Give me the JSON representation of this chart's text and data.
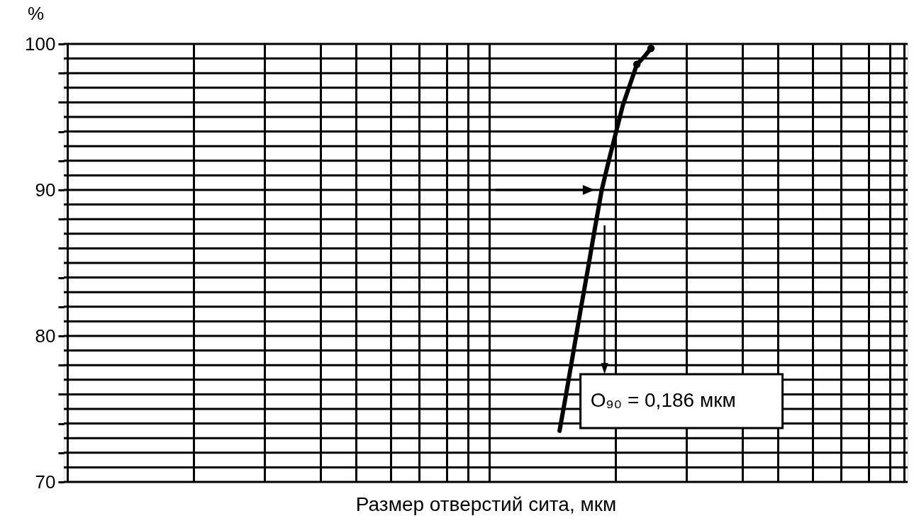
{
  "chart_data": {
    "type": "line",
    "xlabel": "Размер отверстий сита, мкм",
    "ylabel": "%",
    "grid": true,
    "tick_labels": "y",
    "line_style": "solid",
    "ylim": [
      70,
      100
    ],
    "categories": [
      null,
      null,
      null,
      null,
      null,
      null,
      null,
      null,
      null,
      null,
      null,
      null,
      null,
      null,
      null,
      null,
      null,
      null,
      null,
      null,
      null,
      null,
      null,
      null,
      null,
      null,
      null,
      null,
      null,
      null,
      null,
      null,
      null,
      null,
      null,
      null,
      null,
      null,
      null,
      null,
      null,
      null,
      null,
      null,
      null,
      null,
      null,
      null,
      null,
      null,
      null,
      null,
      null,
      null,
      null,
      null,
      null,
      null,
      null,
      null,
      null,
      null,
      null,
      null,
      null,
      null,
      null,
      null,
      null,
      null,
      null,
      null,
      null,
      null,
      null,
      null,
      null,
      null,
      null,
      null,
      null,
      null,
      null,
      null,
      null,
      null,
      null,
      null,
      null,
      null,
      null,
      null,
      null,
      null,
      null,
      null,
      null,
      null,
      null,
      null,
      null,
      null,
      null,
      null,
      null,
      null,
      null,
      null,
      null,
      null,
      null,
      null,
      null,
      null,
      null,
      null,
      null,
      null,
      null,
      null
    ],
    "yticks": [
      70,
      {
        "value": 71,
        "label": null
      },
      {
        "value": 72,
        "label": null
      },
      {
        "value": 73,
        "label": null
      },
      {
        "value": 74,
        "label": null
      },
      {
        "value": 75,
        "label": null
      },
      {
        "value": 76,
        "label": null
      },
      {
        "value": 77,
        "label": null
      },
      {
        "value": 78,
        "label": null
      },
      {
        "value": 79,
        "label": null
      },
      80,
      {
        "value": 81,
        "label": null
      },
      {
        "value": 82,
        "label": null
      },
      {
        "value": 83,
        "label": null
      },
      {
        "value": 84,
        "label": null
      },
      {
        "value": 85,
        "label": null
      },
      {
        "value": 86,
        "label": null
      },
      {
        "value": 87,
        "label": null
      },
      {
        "value": 88,
        "label": null
      },
      {
        "value": 89,
        "label": null
      },
      90,
      {
        "value": 91,
        "label": null
      },
      {
        "value": 92,
        "label": null
      },
      {
        "value": 93,
        "label": null
      },
      {
        "value": 94,
        "label": null
      },
      {
        "value": 95,
        "label": null
      },
      {
        "value": 96,
        "label": null
      },
      {
        "value": 97,
        "label": null
      },
      {
        "value": 98,
        "label": null
      },
      {
        "value": 99,
        "label": null
      },
      100
    ],
    "series": [
      {
        "color": "#000000",
        "marker": "none",
        "values": [
          null,
          null,
          null,
          null,
          null,
          null,
          null,
          null,
          null,
          null,
          null,
          null,
          null,
          null,
          null,
          null,
          null,
          null,
          null,
          null,
          null,
          null,
          null,
          null,
          null,
          null,
          null,
          null,
          null,
          null,
          null,
          null,
          null,
          null,
          null,
          null,
          null,
          null,
          null,
          null,
          null,
          null,
          null,
          null,
          null,
          null,
          null,
          null,
          null,
          null,
          null,
          null,
          null,
          null,
          null,
          null,
          null,
          null,
          null,
          null,
          null,
          null,
          null,
          null,
          null,
          null,
          null,
          null,
          null,
          null,
          73.5,
          76.2,
          79.0,
          81.8,
          84.5,
          87.3,
          90.0,
          92.0,
          93.9,
          95.8,
          97.2,
          98.6,
          99.1,
          99.7,
          null,
          null,
          null,
          null,
          null,
          null,
          null,
          null,
          null,
          null,
          null,
          null,
          null,
          null,
          null,
          null,
          null,
          null,
          null,
          null,
          null,
          null,
          null,
          null,
          null,
          null,
          null,
          null,
          null,
          null,
          null,
          null,
          null,
          null,
          null,
          null
        ]
      },
      {
        "type": "scatter",
        "color": "#000000",
        "marker": "circle",
        "values": [
          null,
          null,
          null,
          null,
          null,
          null,
          null,
          null,
          null,
          null,
          null,
          null,
          null,
          null,
          null,
          null,
          null,
          null,
          null,
          null,
          null,
          null,
          null,
          null,
          null,
          null,
          null,
          null,
          null,
          null,
          null,
          null,
          null,
          null,
          null,
          null,
          null,
          null,
          null,
          null,
          null,
          null,
          null,
          null,
          null,
          null,
          null,
          null,
          null,
          null,
          null,
          null,
          null,
          null,
          null,
          null,
          null,
          null,
          null,
          null,
          null,
          null,
          null,
          null,
          null,
          null,
          null,
          null,
          null,
          null,
          null,
          null,
          null,
          null,
          null,
          null,
          null,
          null,
          null,
          null,
          null,
          98.6,
          null,
          99.7,
          null,
          null,
          null,
          null,
          null,
          null,
          null,
          null,
          null,
          null,
          null,
          null,
          null,
          null,
          null,
          null,
          null,
          null,
          null,
          null,
          null,
          null,
          null,
          null,
          null,
          null,
          null,
          null,
          null,
          null,
          null,
          null,
          null,
          null,
          null,
          null
        ]
      }
    ],
    "annotations": [
      "O₉₀ = 0,186 мкм"
    ]
  }
}
